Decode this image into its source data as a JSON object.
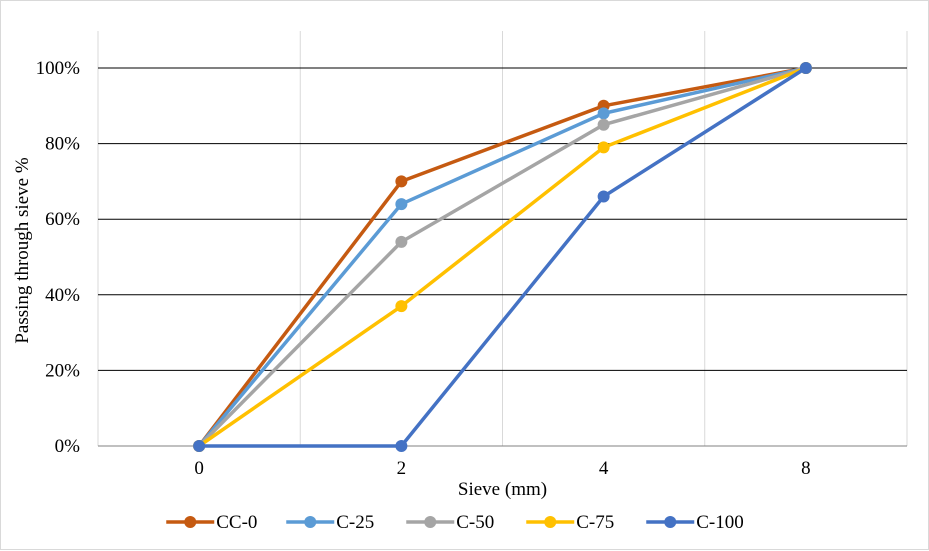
{
  "chart_data": {
    "type": "line",
    "title": "",
    "xlabel": "Sieve (mm)",
    "ylabel": "Passing through sieve %",
    "categories": [
      "0",
      "2",
      "4",
      "8"
    ],
    "ylim": [
      0,
      100
    ],
    "yticks": [
      0,
      20,
      40,
      60,
      80,
      100
    ],
    "ytick_labels": [
      "0%",
      "20%",
      "40%",
      "60%",
      "80%",
      "100%"
    ],
    "grid": true,
    "legend_position": "bottom",
    "series": [
      {
        "name": "CC-0",
        "color": "#c55a11",
        "values": [
          0,
          70,
          90,
          100
        ]
      },
      {
        "name": "C-25",
        "color": "#5b9bd5",
        "values": [
          0,
          64,
          88,
          100
        ]
      },
      {
        "name": "C-50",
        "color": "#a5a5a5",
        "values": [
          0,
          54,
          85,
          100
        ]
      },
      {
        "name": "C-75",
        "color": "#ffc000",
        "values": [
          0,
          37,
          79,
          100
        ]
      },
      {
        "name": "C-100",
        "color": "#4472c4",
        "values": [
          0,
          0,
          66,
          100
        ]
      }
    ]
  }
}
